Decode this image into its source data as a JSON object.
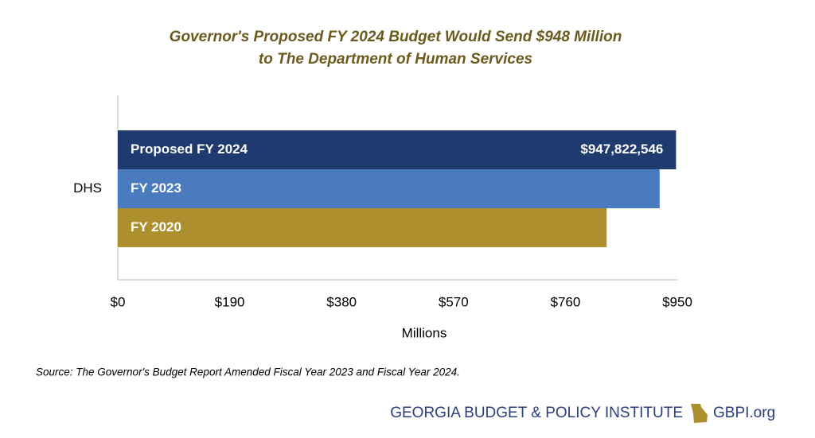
{
  "chart_data": {
    "type": "bar",
    "orientation": "horizontal",
    "title": [
      "Governor's Proposed FY 2024 Budget Would Send $948 Million",
      "to The Department of Human Services"
    ],
    "categories": [
      "DHS"
    ],
    "series": [
      {
        "name": "Proposed FY 2024",
        "color": "#1f3a6e",
        "values": [
          947.822546
        ],
        "value_labels": [
          "$947,822,546"
        ]
      },
      {
        "name": "FY 2023",
        "color": "#4a7bbf",
        "values": [
          920
        ]
      },
      {
        "name": "FY 2020",
        "color": "#ad8f2e",
        "values": [
          830
        ]
      }
    ],
    "xlim": [
      0,
      950
    ],
    "xticks": [
      {
        "value": 0,
        "label": "$0"
      },
      {
        "value": 190,
        "label": "$190"
      },
      {
        "value": 380,
        "label": "$380"
      },
      {
        "value": 570,
        "label": "$570"
      },
      {
        "value": 760,
        "label": "$760"
      },
      {
        "value": 950,
        "label": "$950"
      }
    ],
    "xlabel": "Millions",
    "source": "Source: The Governor's Budget Report Amended Fiscal Year 2023 and Fiscal Year 2024.",
    "footer": {
      "organization": "GEORGIA BUDGET & POLICY INSTITUTE",
      "website": "GBPI.org"
    }
  }
}
